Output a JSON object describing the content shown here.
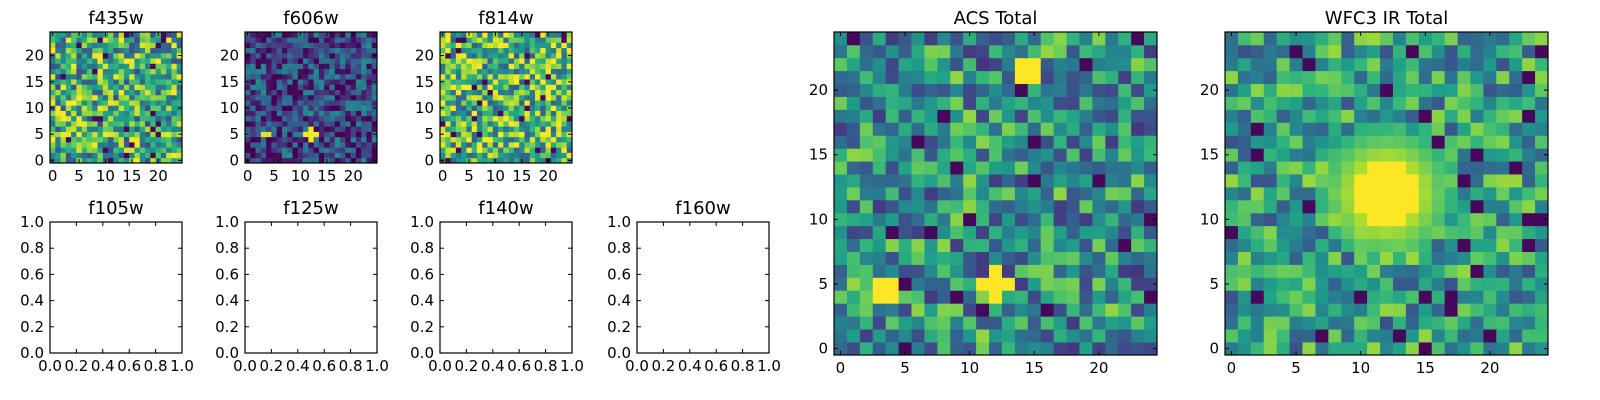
{
  "chart_data": [
    {
      "type": "heatmap",
      "title": "f435w",
      "image_size": [
        25,
        25
      ],
      "xlim": [
        -0.5,
        24.5
      ],
      "ylim": [
        -0.5,
        24.5
      ],
      "xticks": [
        0,
        5,
        10,
        15,
        20
      ],
      "yticks": [
        0,
        5,
        10,
        15,
        20
      ],
      "seed": 11,
      "base": 0.62,
      "noise": 0.4,
      "colormap": "viridis",
      "features": []
    },
    {
      "type": "heatmap",
      "title": "f606w",
      "image_size": [
        25,
        25
      ],
      "xlim": [
        -0.5,
        24.5
      ],
      "ylim": [
        -0.5,
        24.5
      ],
      "xticks": [
        0,
        5,
        10,
        15,
        20
      ],
      "yticks": [
        0,
        5,
        10,
        15,
        20
      ],
      "seed": 23,
      "base": 0.22,
      "noise": 0.28,
      "colormap": "viridis",
      "features": [
        {
          "x": 12,
          "y": 5,
          "shape": "cross",
          "value": 1.0
        },
        {
          "x": 3.5,
          "y": 5,
          "shape": "pair",
          "value": 0.95
        }
      ]
    },
    {
      "type": "heatmap",
      "title": "f814w",
      "image_size": [
        25,
        25
      ],
      "xlim": [
        -0.5,
        24.5
      ],
      "ylim": [
        -0.5,
        24.5
      ],
      "xticks": [
        0,
        5,
        10,
        15,
        20
      ],
      "yticks": [
        0,
        5,
        10,
        15,
        20
      ],
      "seed": 37,
      "base": 0.68,
      "noise": 0.4,
      "colormap": "viridis",
      "features": []
    },
    {
      "type": "empty",
      "title": "f105w",
      "xlim": [
        0,
        1
      ],
      "ylim": [
        0,
        1
      ],
      "xticks": [
        "0.0",
        "0.2",
        "0.4",
        "0.6",
        "0.8",
        "1.0"
      ],
      "yticks": [
        "0.0",
        "0.2",
        "0.4",
        "0.6",
        "0.8",
        "1.0"
      ]
    },
    {
      "type": "empty",
      "title": "f125w",
      "xlim": [
        0,
        1
      ],
      "ylim": [
        0,
        1
      ],
      "xticks": [
        "0.0",
        "0.2",
        "0.4",
        "0.6",
        "0.8",
        "1.0"
      ],
      "yticks": [
        "0.0",
        "0.2",
        "0.4",
        "0.6",
        "0.8",
        "1.0"
      ]
    },
    {
      "type": "empty",
      "title": "f140w",
      "xlim": [
        0,
        1
      ],
      "ylim": [
        0,
        1
      ],
      "xticks": [
        "0.0",
        "0.2",
        "0.4",
        "0.6",
        "0.8",
        "1.0"
      ],
      "yticks": [
        "0.0",
        "0.2",
        "0.4",
        "0.6",
        "0.8",
        "1.0"
      ]
    },
    {
      "type": "empty",
      "title": "f160w",
      "xlim": [
        0,
        1
      ],
      "ylim": [
        0,
        1
      ],
      "xticks": [
        "0.0",
        "0.2",
        "0.4",
        "0.6",
        "0.8",
        "1.0"
      ],
      "yticks": [
        "0.0",
        "0.2",
        "0.4",
        "0.6",
        "0.8",
        "1.0"
      ]
    },
    {
      "type": "heatmap",
      "title": "ACS Total",
      "image_size": [
        25,
        25
      ],
      "xlim": [
        -0.5,
        24.5
      ],
      "ylim": [
        -0.5,
        24.5
      ],
      "xticks": [
        0,
        5,
        10,
        15,
        20
      ],
      "yticks": [
        0,
        5,
        10,
        15,
        20
      ],
      "seed": 53,
      "base": 0.5,
      "noise": 0.34,
      "colormap": "viridis",
      "features": [
        {
          "x": 14.5,
          "y": 21.5,
          "shape": "block",
          "value": 1.0
        },
        {
          "x": 3.5,
          "y": 4.5,
          "shape": "pair",
          "value": 1.0
        },
        {
          "x": 12,
          "y": 5,
          "shape": "cross",
          "value": 1.0
        }
      ]
    },
    {
      "type": "heatmap",
      "title": "WFC3 IR Total",
      "image_size": [
        25,
        25
      ],
      "xlim": [
        -0.5,
        24.5
      ],
      "ylim": [
        -0.5,
        24.5
      ],
      "xticks": [
        0,
        5,
        10,
        15,
        20
      ],
      "yticks": [
        0,
        5,
        10,
        15,
        20
      ],
      "seed": 71,
      "base": 0.55,
      "noise": 0.3,
      "colormap": "viridis",
      "features": [
        {
          "x": 12,
          "y": 12,
          "shape": "blob",
          "value": 1.0
        }
      ]
    }
  ]
}
